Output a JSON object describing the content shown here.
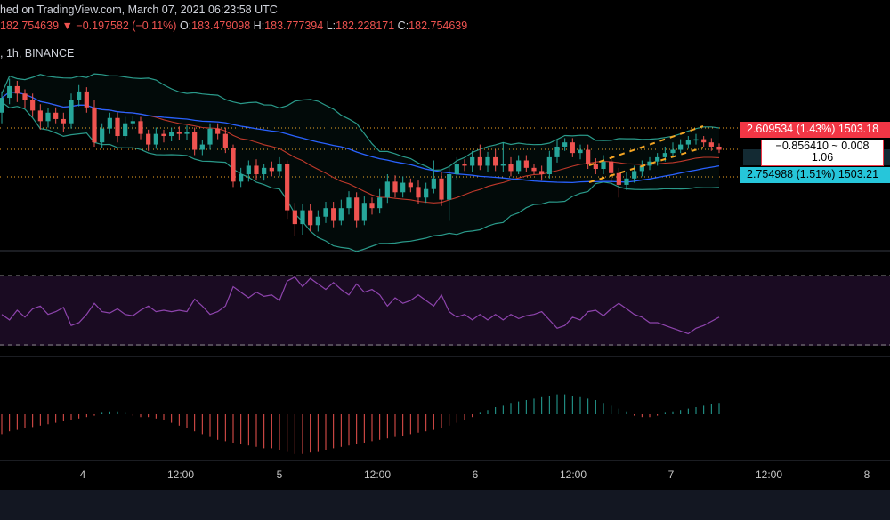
{
  "header": {
    "published_text": "hed on TradingView.com, March 07, 2021 06:23:58 UTC",
    "last_price": "182.754639",
    "change_arrow": "▼",
    "change": "−0.197582 (−0.11%)",
    "o_key": "O:",
    "o_val": "183.479098",
    "h_key": "H:",
    "h_val": "183.777394",
    "l_key": "L:",
    "l_val": "182.228171",
    "c_key": "C:",
    "c_val": "182.754639",
    "interval_exchange": ", 1h, BINANCE"
  },
  "price_flags": {
    "upper": "2.609534 (1.43%) 1503.18",
    "middle_line1": "−0.856410 ~ 0.008",
    "middle_line2": "1.06",
    "lower": "2.754988 (1.51%) 1503.21"
  },
  "colors": {
    "bull": "#26a69a",
    "bear": "#ef5350",
    "bb_band": "#2a9a8a",
    "bb_basis": "#c0392b",
    "ma_blue": "#2962ff",
    "rsi": "#8e44ad",
    "channel": "#f5a623",
    "flag_up": "#f23645",
    "flag_down": "#26c6da"
  },
  "chart_data": {
    "type": "candlestick",
    "x_ticks": [
      "4",
      "12:00",
      "5",
      "12:00",
      "6",
      "12:00",
      "7",
      "12:00",
      "8"
    ],
    "price_candles": [
      {
        "o": 130,
        "c": 116,
        "h": 110,
        "l": 140
      },
      {
        "o": 116,
        "c": 105,
        "h": 98,
        "l": 122
      },
      {
        "o": 105,
        "c": 112,
        "h": 100,
        "l": 120
      },
      {
        "o": 112,
        "c": 118,
        "h": 108,
        "l": 126
      },
      {
        "o": 118,
        "c": 128,
        "h": 112,
        "l": 134
      },
      {
        "o": 128,
        "c": 138,
        "h": 122,
        "l": 146
      },
      {
        "o": 138,
        "c": 130,
        "h": 126,
        "l": 144
      },
      {
        "o": 130,
        "c": 136,
        "h": 125,
        "l": 140
      },
      {
        "o": 136,
        "c": 140,
        "h": 130,
        "l": 148
      },
      {
        "o": 140,
        "c": 118,
        "h": 112,
        "l": 145
      },
      {
        "o": 118,
        "c": 110,
        "h": 104,
        "l": 124
      },
      {
        "o": 110,
        "c": 125,
        "h": 106,
        "l": 130
      },
      {
        "o": 125,
        "c": 158,
        "h": 118,
        "l": 162
      },
      {
        "o": 158,
        "c": 145,
        "h": 140,
        "l": 163
      },
      {
        "o": 145,
        "c": 135,
        "h": 130,
        "l": 150
      },
      {
        "o": 135,
        "c": 152,
        "h": 130,
        "l": 158
      },
      {
        "o": 152,
        "c": 140,
        "h": 134,
        "l": 156
      },
      {
        "o": 140,
        "c": 138,
        "h": 133,
        "l": 146
      },
      {
        "o": 138,
        "c": 150,
        "h": 134,
        "l": 155
      },
      {
        "o": 150,
        "c": 160,
        "h": 146,
        "l": 166
      },
      {
        "o": 160,
        "c": 150,
        "h": 144,
        "l": 164
      },
      {
        "o": 150,
        "c": 152,
        "h": 146,
        "l": 158
      },
      {
        "o": 152,
        "c": 148,
        "h": 144,
        "l": 157
      },
      {
        "o": 148,
        "c": 150,
        "h": 143,
        "l": 156
      },
      {
        "o": 150,
        "c": 148,
        "h": 142,
        "l": 156
      },
      {
        "o": 148,
        "c": 165,
        "h": 144,
        "l": 170
      },
      {
        "o": 165,
        "c": 160,
        "h": 156,
        "l": 170
      },
      {
        "o": 160,
        "c": 145,
        "h": 140,
        "l": 165
      },
      {
        "o": 145,
        "c": 150,
        "h": 140,
        "l": 155
      },
      {
        "o": 150,
        "c": 163,
        "h": 144,
        "l": 168
      },
      {
        "o": 163,
        "c": 195,
        "h": 160,
        "l": 200
      },
      {
        "o": 195,
        "c": 188,
        "h": 182,
        "l": 200
      },
      {
        "o": 188,
        "c": 180,
        "h": 175,
        "l": 195
      },
      {
        "o": 180,
        "c": 188,
        "h": 174,
        "l": 193
      },
      {
        "o": 188,
        "c": 182,
        "h": 178,
        "l": 194
      },
      {
        "o": 182,
        "c": 185,
        "h": 176,
        "l": 190
      },
      {
        "o": 185,
        "c": 178,
        "h": 172,
        "l": 190
      },
      {
        "o": 178,
        "c": 222,
        "h": 175,
        "l": 230
      },
      {
        "o": 222,
        "c": 235,
        "h": 215,
        "l": 246
      },
      {
        "o": 235,
        "c": 222,
        "h": 216,
        "l": 245
      },
      {
        "o": 222,
        "c": 236,
        "h": 216,
        "l": 242
      },
      {
        "o": 236,
        "c": 228,
        "h": 222,
        "l": 242
      },
      {
        "o": 228,
        "c": 220,
        "h": 214,
        "l": 234
      },
      {
        "o": 220,
        "c": 232,
        "h": 214,
        "l": 238
      },
      {
        "o": 232,
        "c": 220,
        "h": 212,
        "l": 236
      },
      {
        "o": 220,
        "c": 210,
        "h": 204,
        "l": 226
      },
      {
        "o": 210,
        "c": 232,
        "h": 205,
        "l": 238
      },
      {
        "o": 232,
        "c": 215,
        "h": 209,
        "l": 236
      },
      {
        "o": 215,
        "c": 220,
        "h": 210,
        "l": 226
      },
      {
        "o": 220,
        "c": 210,
        "h": 202,
        "l": 225
      },
      {
        "o": 210,
        "c": 195,
        "h": 188,
        "l": 215
      },
      {
        "o": 195,
        "c": 205,
        "h": 189,
        "l": 210
      },
      {
        "o": 205,
        "c": 196,
        "h": 190,
        "l": 210
      },
      {
        "o": 196,
        "c": 200,
        "h": 192,
        "l": 205
      },
      {
        "o": 200,
        "c": 210,
        "h": 194,
        "l": 216
      },
      {
        "o": 210,
        "c": 202,
        "h": 196,
        "l": 215
      },
      {
        "o": 202,
        "c": 192,
        "h": 175,
        "l": 206
      },
      {
        "o": 192,
        "c": 212,
        "h": 186,
        "l": 218
      },
      {
        "o": 212,
        "c": 188,
        "h": 180,
        "l": 232
      },
      {
        "o": 188,
        "c": 178,
        "h": 172,
        "l": 193
      },
      {
        "o": 178,
        "c": 180,
        "h": 174,
        "l": 185
      },
      {
        "o": 180,
        "c": 172,
        "h": 166,
        "l": 186
      },
      {
        "o": 172,
        "c": 180,
        "h": 160,
        "l": 184
      },
      {
        "o": 180,
        "c": 172,
        "h": 167,
        "l": 186
      },
      {
        "o": 172,
        "c": 180,
        "h": 165,
        "l": 185
      },
      {
        "o": 180,
        "c": 178,
        "h": 158,
        "l": 186
      },
      {
        "o": 178,
        "c": 185,
        "h": 172,
        "l": 190
      },
      {
        "o": 185,
        "c": 175,
        "h": 170,
        "l": 188
      },
      {
        "o": 175,
        "c": 182,
        "h": 170,
        "l": 186
      },
      {
        "o": 182,
        "c": 185,
        "h": 178,
        "l": 188
      },
      {
        "o": 185,
        "c": 188,
        "h": 180,
        "l": 194
      },
      {
        "o": 188,
        "c": 172,
        "h": 166,
        "l": 192
      },
      {
        "o": 172,
        "c": 162,
        "h": 156,
        "l": 177
      },
      {
        "o": 162,
        "c": 158,
        "h": 154,
        "l": 166
      },
      {
        "o": 158,
        "c": 168,
        "h": 154,
        "l": 172
      },
      {
        "o": 168,
        "c": 165,
        "h": 160,
        "l": 174
      },
      {
        "o": 165,
        "c": 178,
        "h": 160,
        "l": 183
      },
      {
        "o": 178,
        "c": 183,
        "h": 173,
        "l": 188
      },
      {
        "o": 183,
        "c": 176,
        "h": 170,
        "l": 188
      },
      {
        "o": 176,
        "c": 187,
        "h": 170,
        "l": 196
      },
      {
        "o": 187,
        "c": 198,
        "h": 182,
        "l": 210
      },
      {
        "o": 198,
        "c": 192,
        "h": 186,
        "l": 203
      },
      {
        "o": 192,
        "c": 185,
        "h": 180,
        "l": 196
      },
      {
        "o": 185,
        "c": 180,
        "h": 175,
        "l": 190
      },
      {
        "o": 180,
        "c": 176,
        "h": 172,
        "l": 184
      },
      {
        "o": 176,
        "c": 172,
        "h": 168,
        "l": 180
      },
      {
        "o": 172,
        "c": 168,
        "h": 162,
        "l": 176
      },
      {
        "o": 168,
        "c": 165,
        "h": 158,
        "l": 172
      },
      {
        "o": 165,
        "c": 160,
        "h": 155,
        "l": 168
      },
      {
        "o": 160,
        "c": 156,
        "h": 152,
        "l": 164
      },
      {
        "o": 156,
        "c": 155,
        "h": 150,
        "l": 160
      },
      {
        "o": 155,
        "c": 158,
        "h": 152,
        "l": 162
      },
      {
        "o": 158,
        "c": 162,
        "h": 154,
        "l": 166
      },
      {
        "o": 162,
        "c": 165,
        "h": 159,
        "l": 168
      }
    ],
    "rsi": [
      52,
      48,
      55,
      50,
      56,
      58,
      52,
      54,
      57,
      44,
      46,
      52,
      60,
      54,
      53,
      56,
      52,
      51,
      55,
      58,
      54,
      55,
      54,
      55,
      54,
      63,
      58,
      52,
      54,
      58,
      72,
      68,
      64,
      68,
      65,
      66,
      62,
      76,
      79,
      72,
      78,
      74,
      70,
      75,
      70,
      66,
      74,
      68,
      70,
      66,
      58,
      64,
      60,
      62,
      66,
      62,
      58,
      66,
      54,
      50,
      52,
      48,
      52,
      48,
      52,
      48,
      52,
      49,
      51,
      52,
      54,
      48,
      42,
      44,
      50,
      48,
      54,
      55,
      51,
      56,
      60,
      56,
      52,
      50,
      46,
      46,
      44,
      42,
      40,
      38,
      42,
      44,
      47,
      50
    ],
    "histogram": [
      -14,
      -12,
      -11,
      -10,
      -9,
      -8,
      -7,
      -6,
      -5,
      -4,
      -3,
      -2,
      -1,
      1,
      2,
      2,
      1,
      -1,
      -2,
      -2,
      -3,
      -4,
      -6,
      -8,
      -10,
      -12,
      -14,
      -16,
      -18,
      -19,
      -20,
      -21,
      -22,
      -23,
      -24,
      -24,
      -25,
      -26,
      -28,
      -28,
      -27,
      -26,
      -25,
      -24,
      -23,
      -22,
      -21,
      -20,
      -19,
      -18,
      -17,
      -16,
      -15,
      -14,
      -13,
      -12,
      -11,
      -10,
      -8,
      -6,
      -4,
      -2,
      1,
      3,
      5,
      6,
      8,
      9,
      10,
      11,
      12,
      13,
      14,
      14,
      13,
      12,
      11,
      10,
      8,
      6,
      4,
      2,
      -1,
      -2,
      -2,
      -1,
      1,
      2,
      3,
      4,
      5,
      6,
      7,
      8
    ]
  }
}
